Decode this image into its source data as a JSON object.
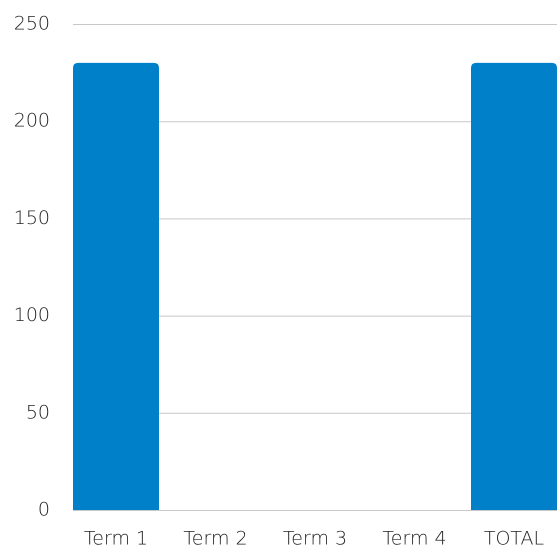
{
  "chart_data": {
    "type": "bar",
    "categories": [
      "Term 1",
      "Term 2",
      "Term 3",
      "Term 4",
      "TOTAL"
    ],
    "values": [
      230,
      0,
      0,
      0,
      230
    ],
    "color": "#0080c8",
    "ylim": [
      0,
      250
    ],
    "yticks": [
      0,
      50,
      100,
      150,
      200,
      250
    ],
    "grid": true
  }
}
